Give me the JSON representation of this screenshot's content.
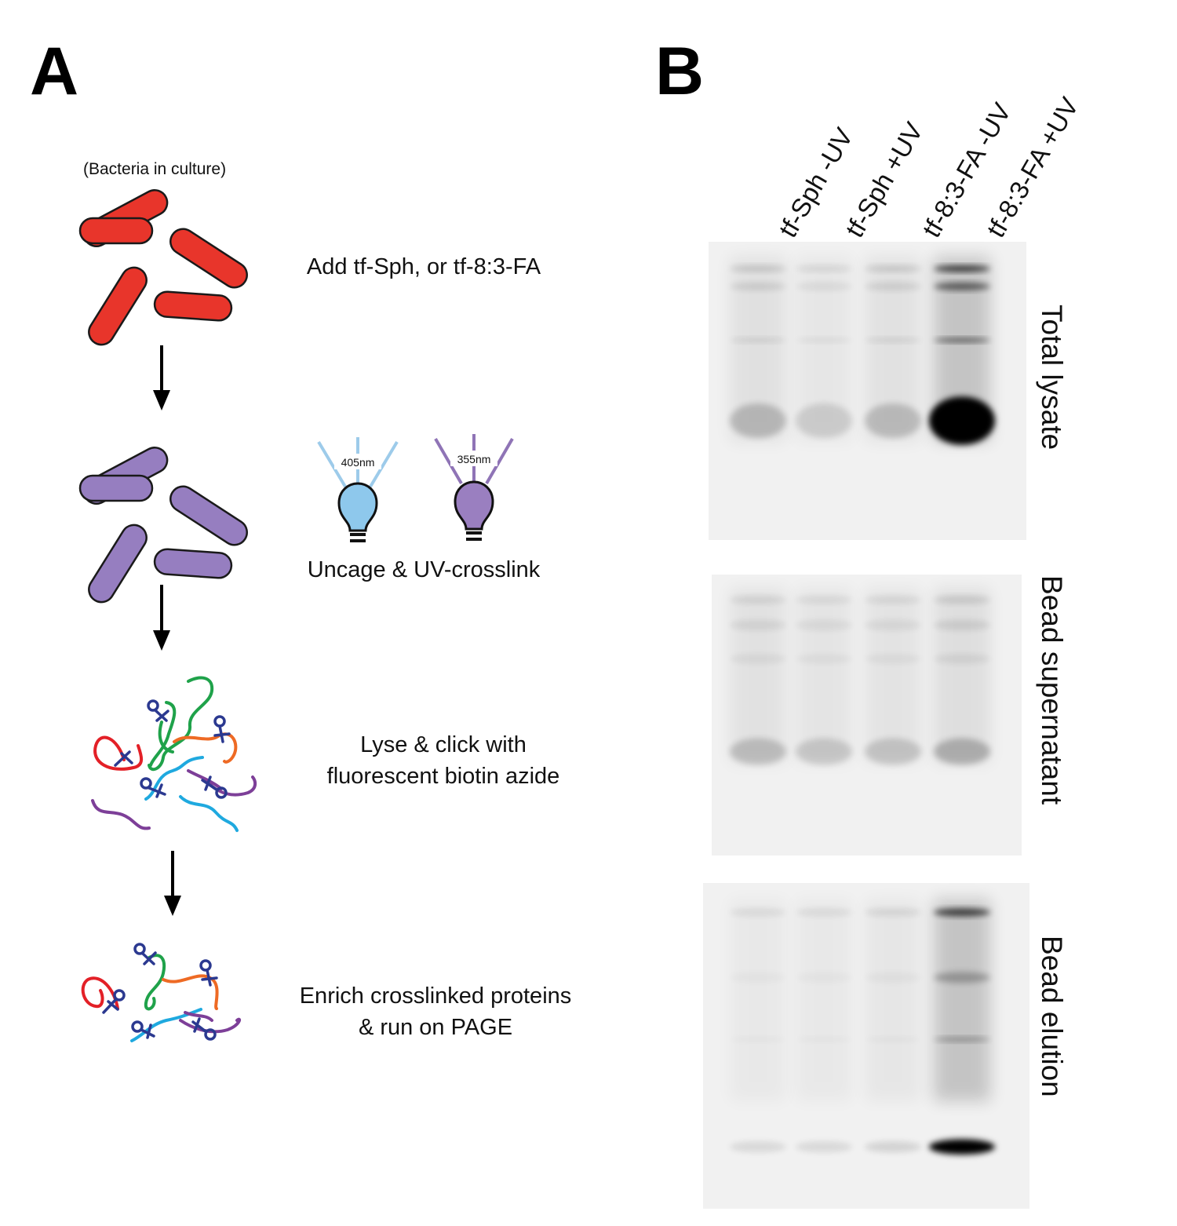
{
  "panels": {
    "a": {
      "letter": "A",
      "culture_note": "(Bacteria in culture)",
      "steps": [
        {
          "line1": "Add tf-Sph, or tf-8:3-FA",
          "line2": ""
        },
        {
          "line1": "Uncage & UV-crosslink",
          "line2": ""
        },
        {
          "line1": "Lyse & click with",
          "line2": "fluorescent biotin azide"
        },
        {
          "line1": "Enrich crosslinked proteins",
          "line2": "& run on PAGE"
        }
      ],
      "bulbs": [
        {
          "wavelength": "405nm",
          "color": "#8ec8ec",
          "ray_color": "#9dcbea"
        },
        {
          "wavelength": "355nm",
          "color": "#9a7fc0",
          "ray_color": "#8f74b6"
        }
      ],
      "cell_colors": {
        "before": "#e8352b",
        "after": "#967ec0"
      },
      "protein_colors": [
        "#e32027",
        "#1fa24a",
        "#ee6a24",
        "#1fa9df",
        "#7d3f98",
        "#2b3990"
      ]
    },
    "b": {
      "letter": "B",
      "lanes": [
        "tf-Sph -UV",
        "tf-Sph +UV",
        "tf-8:3-FA -UV",
        "tf-8:3-FA +UV"
      ],
      "gels": [
        {
          "label": "Total lysate",
          "intensity": [
            0.35,
            0.22,
            0.33,
            1.0
          ]
        },
        {
          "label": "Bead supernatant",
          "intensity": [
            0.32,
            0.26,
            0.28,
            0.42
          ]
        },
        {
          "label": "Bead elution",
          "intensity": [
            0.18,
            0.18,
            0.22,
            1.0
          ]
        }
      ]
    }
  }
}
